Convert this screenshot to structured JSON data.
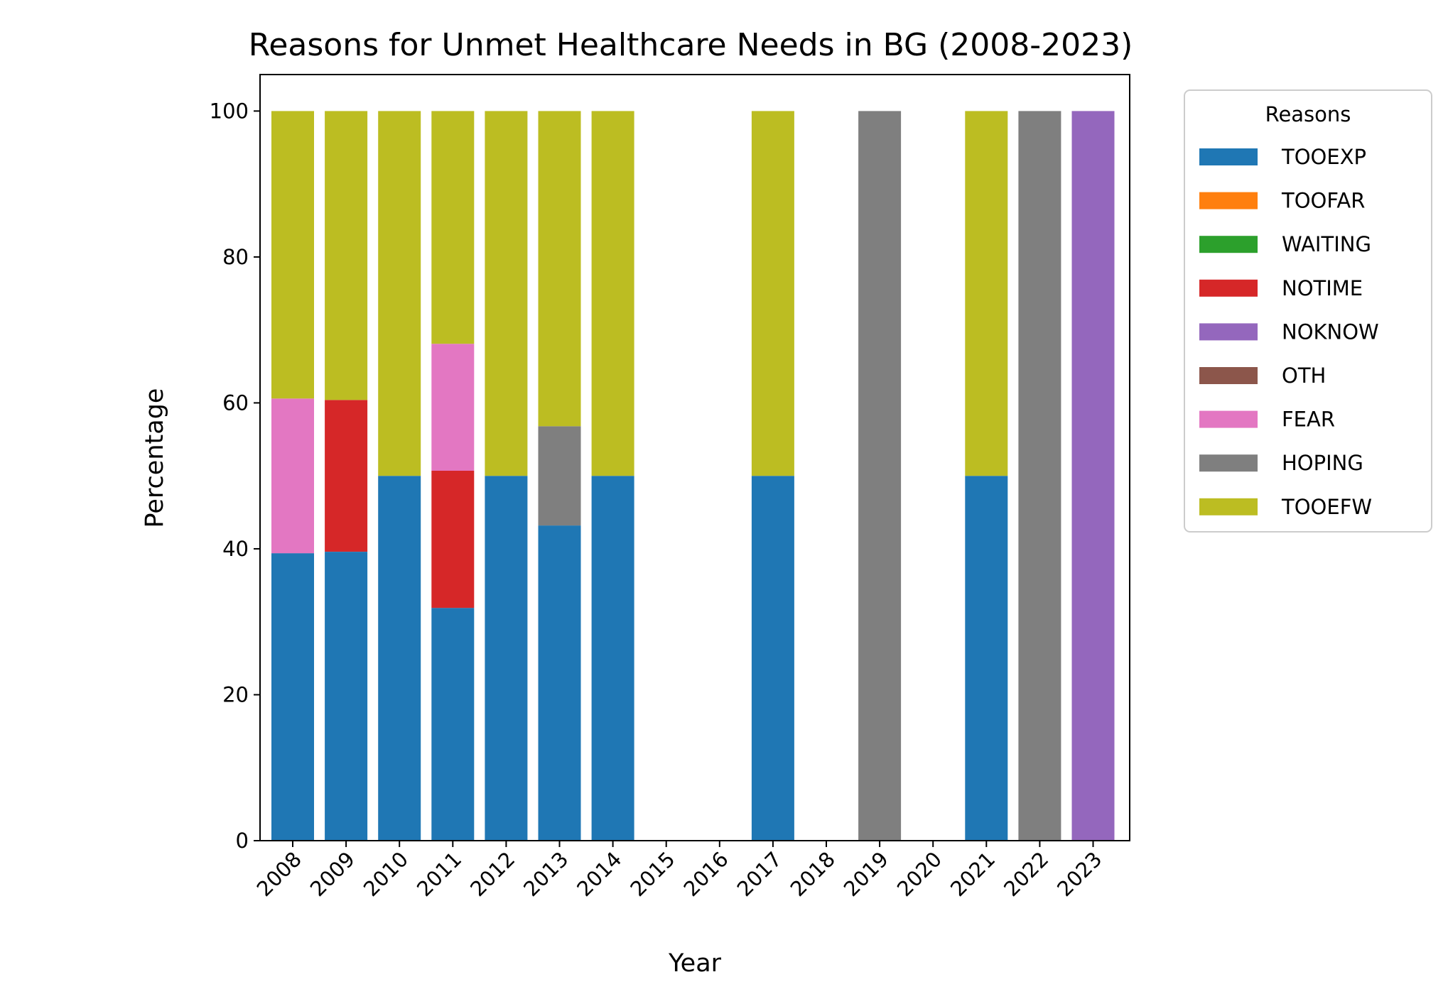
{
  "chart_data": {
    "type": "bar",
    "stacked": true,
    "title": "Reasons for Unmet Healthcare Needs in BG (2008-2023)",
    "xlabel": "Year",
    "ylabel": "Percentage",
    "ylim": [
      0,
      105
    ],
    "yticks": [
      0,
      20,
      40,
      60,
      80,
      100
    ],
    "grid": false,
    "legend_title": "Reasons",
    "legend_position": "outside-right",
    "categories": [
      "2008",
      "2009",
      "2010",
      "2011",
      "2012",
      "2013",
      "2014",
      "2015",
      "2016",
      "2017",
      "2018",
      "2019",
      "2020",
      "2021",
      "2022",
      "2023"
    ],
    "series": [
      {
        "name": "TOOEXP",
        "color": "#1f77b4",
        "values": [
          39.4,
          39.6,
          50,
          31.9,
          50,
          43.2,
          50,
          0,
          0,
          50,
          0,
          0,
          0,
          50,
          0,
          0
        ]
      },
      {
        "name": "TOOFAR",
        "color": "#ff7f0e",
        "values": [
          0,
          0,
          0,
          0,
          0,
          0,
          0,
          0,
          0,
          0,
          0,
          0,
          0,
          0,
          0,
          0
        ]
      },
      {
        "name": "WAITING",
        "color": "#2ca02c",
        "values": [
          0,
          0,
          0,
          0,
          0,
          0,
          0,
          0,
          0,
          0,
          0,
          0,
          0,
          0,
          0,
          0
        ]
      },
      {
        "name": "NOTIME",
        "color": "#d62728",
        "values": [
          0,
          20.8,
          0,
          18.8,
          0,
          0,
          0,
          0,
          0,
          0,
          0,
          0,
          0,
          0,
          0,
          0
        ]
      },
      {
        "name": "NOKNOW",
        "color": "#9467bd",
        "values": [
          0,
          0,
          0,
          0,
          0,
          0,
          0,
          0,
          0,
          0,
          0,
          0,
          0,
          0,
          0,
          100
        ]
      },
      {
        "name": "OTH",
        "color": "#8c564b",
        "values": [
          0,
          0,
          0,
          0,
          0,
          0,
          0,
          0,
          0,
          0,
          0,
          0,
          0,
          0,
          0,
          0
        ]
      },
      {
        "name": "FEAR",
        "color": "#e377c2",
        "values": [
          21.2,
          0,
          0,
          17.4,
          0,
          0,
          0,
          0,
          0,
          0,
          0,
          0,
          0,
          0,
          0,
          0
        ]
      },
      {
        "name": "HOPING",
        "color": "#7f7f7f",
        "values": [
          0,
          0,
          0,
          0,
          0,
          13.6,
          0,
          0,
          0,
          0,
          0,
          100,
          0,
          0,
          100,
          0
        ]
      },
      {
        "name": "TOOEFW",
        "color": "#bcbd22",
        "values": [
          39.4,
          39.6,
          50,
          31.9,
          50,
          43.2,
          50,
          0,
          0,
          50,
          0,
          0,
          0,
          50,
          0,
          0
        ]
      }
    ]
  }
}
